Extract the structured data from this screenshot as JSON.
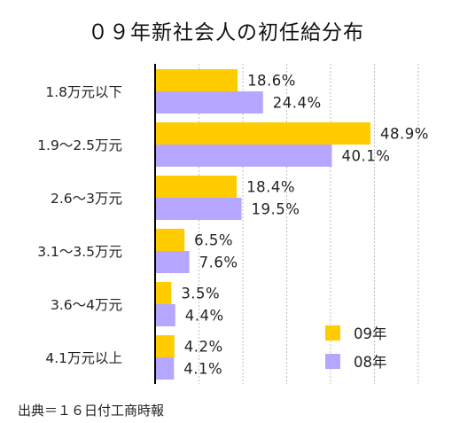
{
  "chart_data": {
    "type": "bar",
    "orientation": "horizontal",
    "title": "０９年新社会人の初任給分布",
    "categories": [
      "1.8万元以下",
      "1.9～2.5万元",
      "2.6～3万元",
      "3.1～3.5万元",
      "3.6～4万元",
      "4.1万元以上"
    ],
    "series": [
      {
        "name": "09年",
        "color": "#FFCC00",
        "values": [
          18.6,
          48.9,
          18.4,
          6.5,
          3.5,
          4.2
        ],
        "labels": [
          "18.6%",
          "48.9%",
          "18.4%",
          "6.5%",
          "3.5%",
          "4.2%"
        ]
      },
      {
        "name": "08年",
        "color": "#B7A6FF",
        "values": [
          24.4,
          40.1,
          19.5,
          7.6,
          4.4,
          4.1
        ],
        "labels": [
          "24.4%",
          "40.1%",
          "19.5%",
          "7.6%",
          "4.4%",
          "4.1%"
        ]
      }
    ],
    "xlim": [
      0,
      60
    ],
    "grid": true,
    "legend_position": "bottom-right",
    "source": "出典＝１６日付工商時報"
  }
}
